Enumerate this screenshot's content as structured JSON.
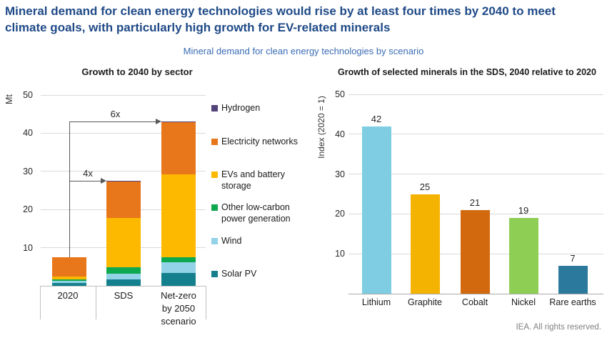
{
  "page": {
    "title_line1": "Mineral demand for clean energy technologies would rise by at least four times by 2040 to meet",
    "title_line2": "climate goals, with particularly high growth for EV-related minerals",
    "subtitle": "Mineral demand for clean energy technologies by scenario",
    "footer": "IEA. All rights reserved."
  },
  "colors": {
    "title_navy": "#1F4A87",
    "subtitle_blue": "#3A6CB4",
    "text_dark": "#1A1A1A",
    "gridline": "#D9D9D9",
    "axis_light": "#BFBFBF",
    "axis_dark": "#A8A8A8",
    "arrow": "#595959",
    "footer_gray": "#808080"
  },
  "chart_data": [
    {
      "type": "bar",
      "stacked": true,
      "title": "Growth to 2040 by sector",
      "ylabel": "Mt",
      "ylim": [
        0,
        50
      ],
      "yticks": [
        10,
        20,
        30,
        40,
        50
      ],
      "grid": true,
      "legend_position": "right",
      "categories": [
        "2020",
        "SDS",
        "Net-zero by 2050 scenario"
      ],
      "series": [
        {
          "name": "Solar PV",
          "color": "#15808D",
          "values": [
            0.7,
            1.6,
            3.4
          ]
        },
        {
          "name": "Wind",
          "color": "#92D3E7",
          "values": [
            0.6,
            1.5,
            2.7
          ]
        },
        {
          "name": "Other low-carbon power generation",
          "color": "#0EA84E",
          "values": [
            0.4,
            1.7,
            1.4
          ]
        },
        {
          "name": "EVs and battery storage",
          "color": "#FCB900",
          "values": [
            0.7,
            12.9,
            21.7
          ]
        },
        {
          "name": "Electricity networks",
          "color": "#E8761B",
          "values": [
            5.1,
            9.7,
            13.7
          ]
        },
        {
          "name": "Hydrogen",
          "color": "#52437A",
          "values": [
            0,
            0.1,
            0.1
          ]
        }
      ],
      "totals": [
        7.5,
        27.5,
        43
      ],
      "legend_order": [
        "Hydrogen",
        "Electricity networks",
        "EVs and battery storage",
        "Other low-carbon power generation",
        "Wind",
        "Solar PV"
      ],
      "annotations": [
        {
          "label": "4x",
          "from_category": "2020",
          "to_category": "SDS",
          "level": 27.5
        },
        {
          "label": "6x",
          "from_category": "2020",
          "to_category": "Net-zero by 2050 scenario",
          "level": 43
        }
      ]
    },
    {
      "type": "bar",
      "stacked": false,
      "title": "Growth of selected minerals in the SDS, 2040 relative to 2020",
      "ylabel": "Index (2020 = 1)",
      "ylim": [
        0,
        50
      ],
      "yticks": [
        10,
        20,
        30,
        40,
        50
      ],
      "grid": true,
      "data_labels": true,
      "categories": [
        "Lithium",
        "Graphite",
        "Cobalt",
        "Nickel",
        "Rare earths"
      ],
      "values": [
        42,
        25,
        21,
        19,
        7
      ],
      "bar_colors": [
        "#7FCDE3",
        "#F5B301",
        "#D2690E",
        "#8FCE55",
        "#2B7A9E"
      ]
    }
  ]
}
